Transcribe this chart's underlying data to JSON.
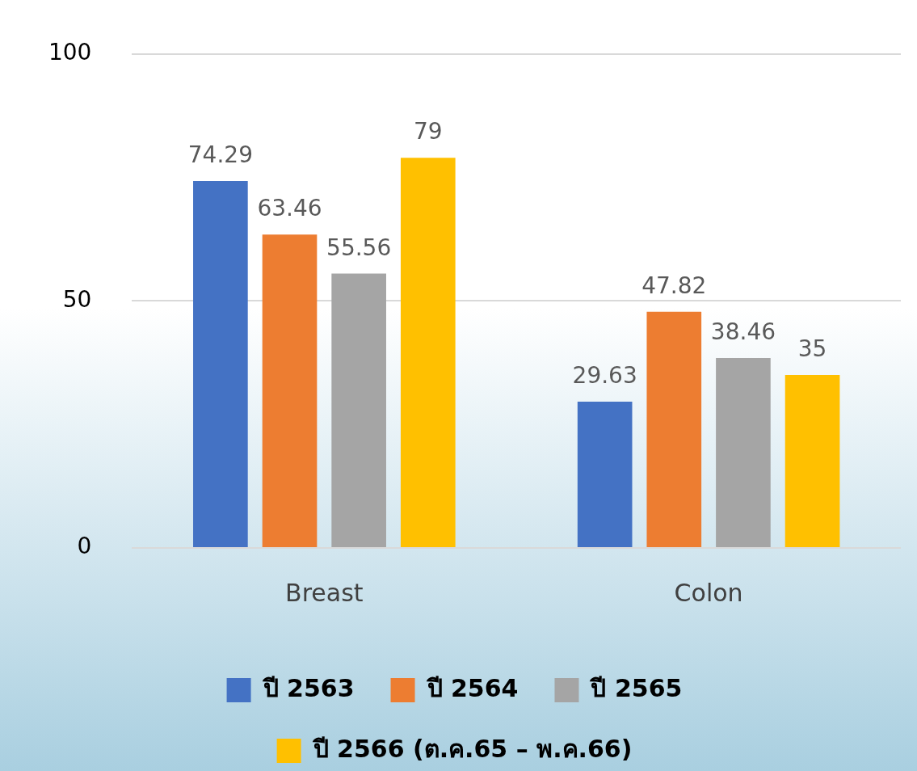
{
  "chart_data": {
    "type": "bar",
    "categories": [
      "Breast",
      "Colon"
    ],
    "series": [
      {
        "name": "ปี 2563",
        "color": "#4472c4",
        "values": [
          74.29,
          29.63
        ]
      },
      {
        "name": "ปี 2564",
        "color": "#ed7d31",
        "values": [
          63.46,
          47.82
        ]
      },
      {
        "name": "ปี 2565",
        "color": "#a5a5a5",
        "values": [
          55.56,
          38.46
        ]
      },
      {
        "name": "ปี 2566 (ต.ค.65 – พ.ค.66)",
        "color": "#ffc000",
        "values": [
          79,
          35
        ]
      }
    ],
    "ylim": [
      0,
      100
    ],
    "yticks": [
      0,
      50,
      100
    ],
    "grid": "y",
    "legend": "bottom",
    "data_labels": true
  }
}
